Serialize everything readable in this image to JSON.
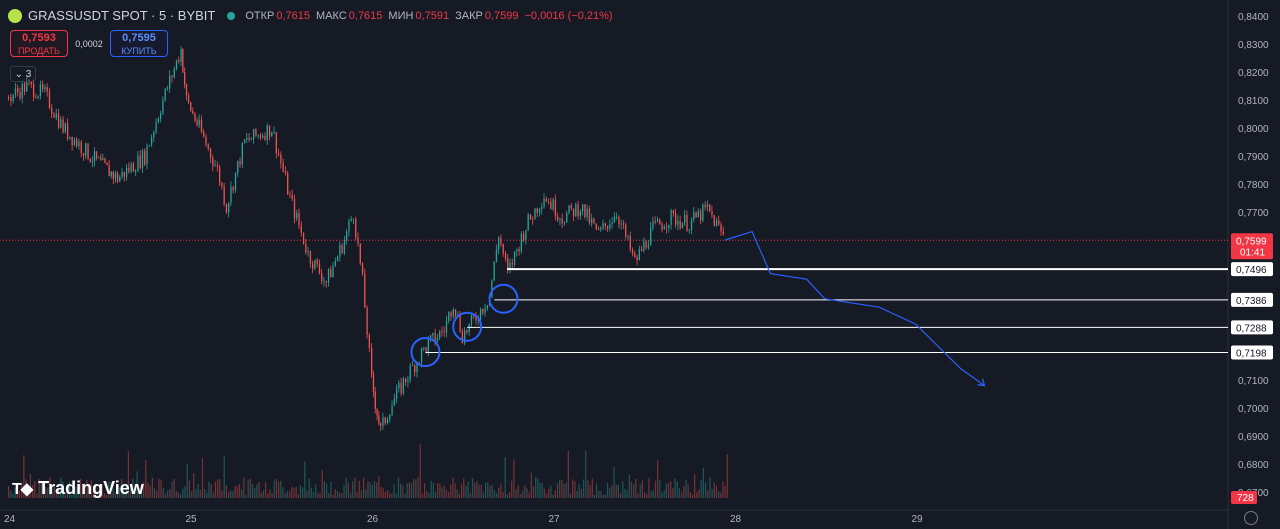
{
  "header": {
    "symbol": "GRASSUSDT SPOT · 5 · BYBIT",
    "ohlc": [
      {
        "label": "ОТКР",
        "value": "0,7615"
      },
      {
        "label": "МАКС",
        "value": "0,7615"
      },
      {
        "label": "МИН",
        "value": "0,7591"
      },
      {
        "label": "ЗАКР",
        "value": "0,7599"
      }
    ],
    "change": "−0,0016 (−0,21%)"
  },
  "trade": {
    "sell_price": "0,7593",
    "sell_label": "ПРОДАТЬ",
    "spread": "0,0002",
    "buy_price": "0,7595",
    "buy_label": "КУПИТЬ"
  },
  "indicators_badge": "3",
  "branding": "TradingView",
  "colors": {
    "bg": "#161a25",
    "up": "#26a69a",
    "down": "#ef5350",
    "accent": "#2962ff",
    "price_tag": "#f23645"
  },
  "chart_data": {
    "type": "line",
    "title": "",
    "x_ticks": [
      "24",
      "25",
      "26",
      "27",
      "28",
      "29"
    ],
    "y_ticks": [
      "0,8400",
      "0,8300",
      "0,8200",
      "0,8100",
      "0,8000",
      "0,7900",
      "0,7800",
      "0,7700",
      "0,7600",
      "0,7500",
      "0,7400",
      "0,7300",
      "0,7200",
      "0,7100",
      "0,7000",
      "0,6900",
      "0,6800",
      "0,6700"
    ],
    "ylim": [
      0.67,
      0.84
    ],
    "price_series": [
      {
        "x": 24.0,
        "y": 0.811
      },
      {
        "x": 24.1,
        "y": 0.815
      },
      {
        "x": 24.2,
        "y": 0.812
      },
      {
        "x": 24.3,
        "y": 0.8
      },
      {
        "x": 24.45,
        "y": 0.79
      },
      {
        "x": 24.6,
        "y": 0.782
      },
      {
        "x": 24.75,
        "y": 0.79
      },
      {
        "x": 24.85,
        "y": 0.81
      },
      {
        "x": 24.95,
        "y": 0.828
      },
      {
        "x": 24.98,
        "y": 0.81
      },
      {
        "x": 25.05,
        "y": 0.8
      },
      {
        "x": 25.15,
        "y": 0.785
      },
      {
        "x": 25.2,
        "y": 0.772
      },
      {
        "x": 25.3,
        "y": 0.795
      },
      {
        "x": 25.45,
        "y": 0.8
      },
      {
        "x": 25.55,
        "y": 0.775
      },
      {
        "x": 25.65,
        "y": 0.755
      },
      {
        "x": 25.75,
        "y": 0.745
      },
      {
        "x": 25.85,
        "y": 0.76
      },
      {
        "x": 25.9,
        "y": 0.77
      },
      {
        "x": 25.95,
        "y": 0.745
      },
      {
        "x": 26.0,
        "y": 0.71
      },
      {
        "x": 26.02,
        "y": 0.702
      },
      {
        "x": 26.05,
        "y": 0.692
      },
      {
        "x": 26.1,
        "y": 0.7
      },
      {
        "x": 26.2,
        "y": 0.712
      },
      {
        "x": 26.3,
        "y": 0.722
      },
      {
        "x": 26.4,
        "y": 0.728
      },
      {
        "x": 26.45,
        "y": 0.738
      },
      {
        "x": 26.5,
        "y": 0.726
      },
      {
        "x": 26.55,
        "y": 0.73
      },
      {
        "x": 26.65,
        "y": 0.74
      },
      {
        "x": 26.7,
        "y": 0.762
      },
      {
        "x": 26.75,
        "y": 0.748
      },
      {
        "x": 26.85,
        "y": 0.765
      },
      {
        "x": 26.95,
        "y": 0.776
      },
      {
        "x": 27.05,
        "y": 0.768
      },
      {
        "x": 27.15,
        "y": 0.772
      },
      {
        "x": 27.25,
        "y": 0.762
      },
      {
        "x": 27.35,
        "y": 0.77
      },
      {
        "x": 27.45,
        "y": 0.752
      },
      {
        "x": 27.55,
        "y": 0.764
      },
      {
        "x": 27.65,
        "y": 0.768
      },
      {
        "x": 27.75,
        "y": 0.766
      },
      {
        "x": 27.85,
        "y": 0.771
      },
      {
        "x": 27.95,
        "y": 0.76
      }
    ],
    "current_price": {
      "value": "0,7599",
      "timer": "01:41"
    },
    "levels": [
      {
        "value": "0,7496",
        "y": 0.7496
      },
      {
        "value": "0,7386",
        "y": 0.7386
      },
      {
        "value": "0,7288",
        "y": 0.7288
      },
      {
        "value": "0,7198",
        "y": 0.7198
      }
    ],
    "volume_tag": "728",
    "projection": [
      {
        "x": 27.95,
        "y": 0.76
      },
      {
        "x": 28.1,
        "y": 0.763
      },
      {
        "x": 28.2,
        "y": 0.748
      },
      {
        "x": 28.4,
        "y": 0.746
      },
      {
        "x": 28.5,
        "y": 0.739
      },
      {
        "x": 28.8,
        "y": 0.736
      },
      {
        "x": 29.0,
        "y": 0.73
      },
      {
        "x": 29.25,
        "y": 0.714
      },
      {
        "x": 29.38,
        "y": 0.708
      }
    ],
    "circles": [
      {
        "x": 26.3,
        "y": 0.72
      },
      {
        "x": 26.53,
        "y": 0.729
      },
      {
        "x": 26.73,
        "y": 0.739
      }
    ]
  }
}
